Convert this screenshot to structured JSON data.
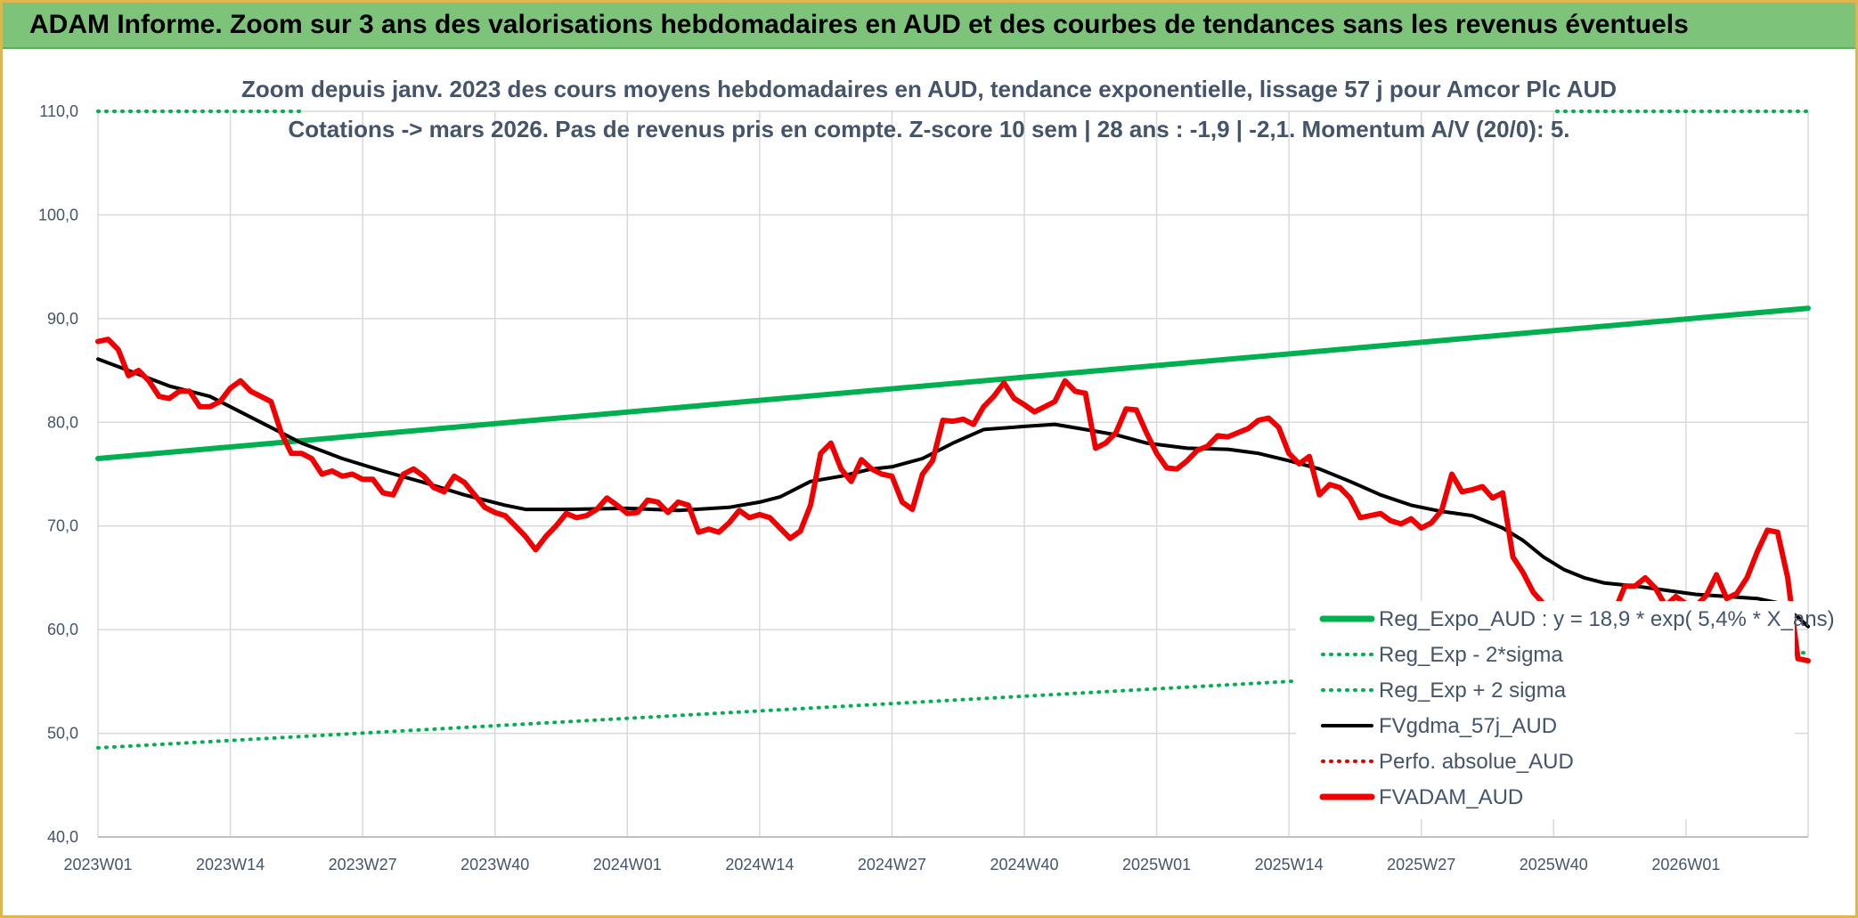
{
  "header": {
    "title": "ADAM Informe. Zoom sur 3 ans des valorisations hebdomadaires en AUD et des courbes de tendances sans les revenus éventuels"
  },
  "chart_data": {
    "type": "line",
    "title": "Zoom depuis janv. 2023 des cours moyens hebdomadaires en AUD, tendance exponentielle, lissage 57 j pour Amcor Plc AUD",
    "subtitle": "Cotations -> mars 2026. Pas de revenus pris en compte. Z-score 10 sem | 28 ans : -1,9 | -2,1. Momentum A/V (20/0): 5.",
    "ylim": [
      40,
      110
    ],
    "yticks": [
      "40,0",
      "50,0",
      "60,0",
      "70,0",
      "80,0",
      "90,0",
      "100,0",
      "110,0"
    ],
    "x_range": [
      1,
      169
    ],
    "xticks": [
      {
        "label": "2023W01",
        "week": 1
      },
      {
        "label": "2023W14",
        "week": 14
      },
      {
        "label": "2023W27",
        "week": 27
      },
      {
        "label": "2023W40",
        "week": 40
      },
      {
        "label": "2024W01",
        "week": 53
      },
      {
        "label": "2024W14",
        "week": 66
      },
      {
        "label": "2024W27",
        "week": 79
      },
      {
        "label": "2024W40",
        "week": 92
      },
      {
        "label": "2025W01",
        "week": 105
      },
      {
        "label": "2025W14",
        "week": 118
      },
      {
        "label": "2025W27",
        "week": 131
      },
      {
        "label": "2025W40",
        "week": 144
      },
      {
        "label": "2026W01",
        "week": 157
      }
    ],
    "grid": true,
    "legend_position": "bottom-right",
    "series": [
      {
        "name": "Reg_Expo_AUD : y = 18,9 * exp( 5,4% *  X_ans)",
        "color": "#00b050",
        "style": "solid",
        "points": [
          [
            1,
            76.5
          ],
          [
            169,
            91.0
          ]
        ]
      },
      {
        "name": "Reg_Exp - 2*sigma",
        "color": "#00b050",
        "style": "dotted",
        "points": [
          [
            1,
            48.6
          ],
          [
            169,
            57.8
          ]
        ]
      },
      {
        "name": "Reg_Exp + 2 sigma",
        "color": "#00b050",
        "style": "dotted",
        "points": [
          [
            1,
            110.0
          ],
          [
            169,
            110.0
          ]
        ]
      },
      {
        "name": "FVgdma_57j_AUD",
        "color": "#000000",
        "style": "solid",
        "points": [
          [
            1,
            86.1
          ],
          [
            4,
            85.0
          ],
          [
            8,
            83.5
          ],
          [
            12,
            82.5
          ],
          [
            14,
            81.5
          ],
          [
            17,
            80.0
          ],
          [
            21,
            78.0
          ],
          [
            25,
            76.5
          ],
          [
            29,
            75.3
          ],
          [
            33,
            74.2
          ],
          [
            37,
            73.0
          ],
          [
            41,
            72.0
          ],
          [
            43,
            71.6
          ],
          [
            47,
            71.6
          ],
          [
            53,
            71.7
          ],
          [
            58,
            71.5
          ],
          [
            63,
            71.8
          ],
          [
            66,
            72.3
          ],
          [
            68,
            72.8
          ],
          [
            71,
            74.3
          ],
          [
            74,
            74.8
          ],
          [
            77,
            75.5
          ],
          [
            79,
            75.7
          ],
          [
            82,
            76.5
          ],
          [
            85,
            78.0
          ],
          [
            88,
            79.3
          ],
          [
            92,
            79.6
          ],
          [
            95,
            79.8
          ],
          [
            98,
            79.3
          ],
          [
            101,
            78.8
          ],
          [
            104,
            78.0
          ],
          [
            108,
            77.5
          ],
          [
            112,
            77.4
          ],
          [
            115,
            77.0
          ],
          [
            118,
            76.3
          ],
          [
            121,
            75.5
          ],
          [
            124,
            74.3
          ],
          [
            127,
            73.0
          ],
          [
            130,
            72.0
          ],
          [
            133,
            71.4
          ],
          [
            136,
            71.0
          ],
          [
            139,
            69.8
          ],
          [
            141,
            68.6
          ],
          [
            143,
            67.0
          ],
          [
            145,
            65.8
          ],
          [
            147,
            65.0
          ],
          [
            149,
            64.5
          ],
          [
            152,
            64.2
          ],
          [
            155,
            63.8
          ],
          [
            158,
            63.4
          ],
          [
            161,
            63.2
          ],
          [
            164,
            63.0
          ],
          [
            166,
            62.6
          ],
          [
            168,
            61.2
          ],
          [
            169,
            60.3
          ]
        ]
      },
      {
        "name": "Perfo. absolue_AUD",
        "color": "#e00000",
        "style": "dotted",
        "points": []
      },
      {
        "name": "FVADAM_AUD",
        "color": "#f00000",
        "style": "solid",
        "points": [
          [
            1,
            87.8
          ],
          [
            2,
            88.0
          ],
          [
            3,
            87.0
          ],
          [
            4,
            84.5
          ],
          [
            5,
            85.0
          ],
          [
            6,
            84.0
          ],
          [
            7,
            82.5
          ],
          [
            8,
            82.3
          ],
          [
            9,
            83.0
          ],
          [
            10,
            83.0
          ],
          [
            11,
            81.5
          ],
          [
            12,
            81.5
          ],
          [
            13,
            82.0
          ],
          [
            14,
            83.3
          ],
          [
            15,
            84.0
          ],
          [
            16,
            83.0
          ],
          [
            17,
            82.5
          ],
          [
            18,
            82.0
          ],
          [
            19,
            79.0
          ],
          [
            20,
            77.0
          ],
          [
            21,
            77.0
          ],
          [
            22,
            76.5
          ],
          [
            23,
            75.0
          ],
          [
            24,
            75.3
          ],
          [
            25,
            74.8
          ],
          [
            26,
            75.0
          ],
          [
            27,
            74.5
          ],
          [
            28,
            74.5
          ],
          [
            29,
            73.2
          ],
          [
            30,
            73.0
          ],
          [
            31,
            75.0
          ],
          [
            32,
            75.5
          ],
          [
            33,
            74.8
          ],
          [
            34,
            73.7
          ],
          [
            35,
            73.3
          ],
          [
            36,
            74.8
          ],
          [
            37,
            74.2
          ],
          [
            38,
            73.0
          ],
          [
            39,
            71.8
          ],
          [
            40,
            71.3
          ],
          [
            41,
            71.0
          ],
          [
            42,
            70.0
          ],
          [
            43,
            69.0
          ],
          [
            44,
            67.7
          ],
          [
            45,
            69.0
          ],
          [
            46,
            70.0
          ],
          [
            47,
            71.2
          ],
          [
            48,
            70.8
          ],
          [
            49,
            71.0
          ],
          [
            50,
            71.6
          ],
          [
            51,
            72.7
          ],
          [
            52,
            72.0
          ],
          [
            53,
            71.2
          ],
          [
            54,
            71.3
          ],
          [
            55,
            72.5
          ],
          [
            56,
            72.3
          ],
          [
            57,
            71.3
          ],
          [
            58,
            72.3
          ],
          [
            59,
            72.0
          ],
          [
            60,
            69.4
          ],
          [
            61,
            69.7
          ],
          [
            62,
            69.4
          ],
          [
            63,
            70.3
          ],
          [
            64,
            71.5
          ],
          [
            65,
            70.8
          ],
          [
            66,
            71.1
          ],
          [
            67,
            70.8
          ],
          [
            68,
            69.8
          ],
          [
            69,
            68.8
          ],
          [
            70,
            69.5
          ],
          [
            71,
            72.0
          ],
          [
            72,
            77.0
          ],
          [
            73,
            78.0
          ],
          [
            74,
            75.5
          ],
          [
            75,
            74.3
          ],
          [
            76,
            76.4
          ],
          [
            77,
            75.5
          ],
          [
            78,
            75.0
          ],
          [
            79,
            74.8
          ],
          [
            80,
            72.3
          ],
          [
            81,
            71.6
          ],
          [
            82,
            75.0
          ],
          [
            83,
            76.3
          ],
          [
            84,
            80.2
          ],
          [
            85,
            80.1
          ],
          [
            86,
            80.3
          ],
          [
            87,
            79.8
          ],
          [
            88,
            81.5
          ],
          [
            89,
            82.5
          ],
          [
            90,
            83.8
          ],
          [
            91,
            82.3
          ],
          [
            92,
            81.7
          ],
          [
            93,
            81.0
          ],
          [
            94,
            81.5
          ],
          [
            95,
            82.0
          ],
          [
            96,
            84.0
          ],
          [
            97,
            83.0
          ],
          [
            98,
            82.8
          ],
          [
            99,
            77.5
          ],
          [
            100,
            78.0
          ],
          [
            101,
            79.0
          ],
          [
            102,
            81.3
          ],
          [
            103,
            81.2
          ],
          [
            104,
            79.0
          ],
          [
            105,
            77.0
          ],
          [
            106,
            75.6
          ],
          [
            107,
            75.5
          ],
          [
            108,
            76.3
          ],
          [
            109,
            77.3
          ],
          [
            110,
            77.7
          ],
          [
            111,
            78.7
          ],
          [
            112,
            78.6
          ],
          [
            113,
            79.0
          ],
          [
            114,
            79.4
          ],
          [
            115,
            80.2
          ],
          [
            116,
            80.4
          ],
          [
            117,
            79.5
          ],
          [
            118,
            77.0
          ],
          [
            119,
            76.0
          ],
          [
            120,
            76.7
          ],
          [
            121,
            73.0
          ],
          [
            122,
            74.0
          ],
          [
            123,
            73.7
          ],
          [
            124,
            72.7
          ],
          [
            125,
            70.8
          ],
          [
            126,
            71.0
          ],
          [
            127,
            71.2
          ],
          [
            128,
            70.5
          ],
          [
            129,
            70.2
          ],
          [
            130,
            70.7
          ],
          [
            131,
            69.8
          ],
          [
            132,
            70.3
          ],
          [
            133,
            71.5
          ],
          [
            134,
            75.0
          ],
          [
            135,
            73.3
          ],
          [
            136,
            73.5
          ],
          [
            137,
            73.8
          ],
          [
            138,
            72.7
          ],
          [
            139,
            73.2
          ],
          [
            140,
            67.0
          ],
          [
            141,
            65.5
          ],
          [
            142,
            63.6
          ],
          [
            143,
            62.5
          ],
          [
            144,
            62.5
          ],
          [
            145,
            61.8
          ],
          [
            146,
            61.5
          ],
          [
            147,
            61.5
          ],
          [
            148,
            62.5
          ],
          [
            149,
            62.5
          ],
          [
            150,
            61.8
          ],
          [
            151,
            64.2
          ],
          [
            152,
            64.2
          ],
          [
            153,
            65.0
          ],
          [
            154,
            64.0
          ],
          [
            155,
            62.3
          ],
          [
            156,
            63.2
          ],
          [
            157,
            62.5
          ],
          [
            158,
            62.3
          ],
          [
            159,
            63.3
          ],
          [
            160,
            65.3
          ],
          [
            161,
            63.0
          ],
          [
            162,
            63.5
          ],
          [
            163,
            65.0
          ],
          [
            164,
            67.5
          ],
          [
            165,
            69.6
          ],
          [
            166,
            69.4
          ],
          [
            167,
            65.0
          ],
          [
            168,
            57.2
          ],
          [
            169,
            57.0
          ]
        ]
      }
    ]
  }
}
